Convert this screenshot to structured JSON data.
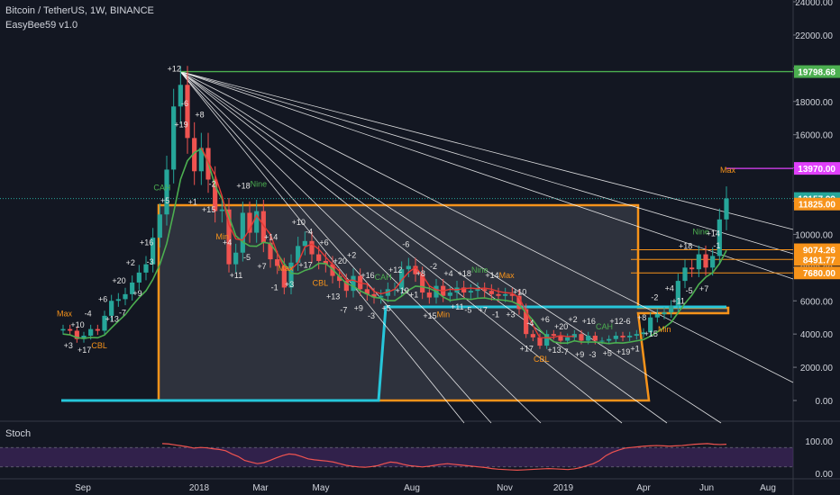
{
  "header": {
    "symbol_line": "Bitcoin / TetherUS, 1W, BINANCE",
    "indicator": "EasyBee59 v1.0"
  },
  "colors": {
    "background": "#131722",
    "up": "#26a69a",
    "down": "#ef5350",
    "orange": "#f7931a",
    "teal": "#26c6da",
    "green_line": "#4caf50",
    "red_line": "#e53935",
    "stoch_band": "#4a2a6e",
    "stoch_line": "#ef5350",
    "magenta": "#e040fb",
    "grid": "#2a2e39"
  },
  "chart_data": [
    {
      "type": "candlestick",
      "title": "Bitcoin / TetherUS, 1W, BINANCE",
      "ylim": [
        0,
        24000
      ],
      "y_ticks": [
        "0.00",
        "2000.00",
        "4000.00",
        "6000.00",
        "8000.00",
        "10000.00",
        "12000.00",
        "14000.00",
        "16000.00",
        "18000.00",
        "20000.00",
        "22000.00",
        "24000.00"
      ],
      "x_ticks": [
        "Sep",
        "2018",
        "Mar",
        "May",
        "Aug",
        "Nov",
        "2019",
        "Apr",
        "Jun",
        "Aug"
      ],
      "price_labels": [
        {
          "text": "19798.68",
          "value": 19798.68,
          "color": "#4caf50"
        },
        {
          "text": "13970.00",
          "value": 13970,
          "color": "#e040fb"
        },
        {
          "text": "12157.99",
          "value": 12157.99,
          "color": "#26a69a"
        },
        {
          "text": "11825.00",
          "value": 11825,
          "color": "#f7931a"
        },
        {
          "text": "9074.26",
          "value": 9074.26,
          "color": "#f7931a"
        },
        {
          "text": "8491.77",
          "value": 8491.77,
          "color": "#f7931a"
        },
        {
          "text": "7680.00",
          "value": 7680,
          "color": "#f7931a"
        }
      ],
      "closes": [
        4300,
        4200,
        3700,
        3900,
        4300,
        4200,
        5100,
        6000,
        6100,
        6400,
        7100,
        7700,
        8200,
        9800,
        11200,
        13900,
        17700,
        19000,
        15800,
        13800,
        15200,
        13300,
        11400,
        11500,
        8200,
        8900,
        11300,
        10100,
        11400,
        9500,
        8500,
        8100,
        6800,
        8300,
        9300,
        9600,
        8800,
        8400,
        8200,
        7500,
        7200,
        6600,
        7500,
        6700,
        6400,
        6200,
        6300,
        6700,
        6700,
        7900,
        8100,
        7600,
        6500,
        6200,
        6900,
        6300,
        6500,
        6800,
        6500,
        6600,
        6700,
        6600,
        6400,
        6300,
        6400,
        6300,
        5500,
        4000,
        3800,
        3300,
        4000,
        3900,
        3600,
        3800,
        4000,
        3600,
        3900,
        3600,
        3600,
        3700,
        3900,
        3800,
        3900,
        4000,
        4100,
        5000,
        5200,
        5300,
        5700,
        7200,
        8000,
        7900,
        8800,
        8000,
        8700,
        10900,
        12158
      ],
      "indicator_labels": [
        "Max",
        "Min",
        "CAH",
        "CBL",
        "Nine",
        "+1",
        "+2",
        "+3",
        "+4",
        "+5",
        "+6",
        "+7",
        "+8",
        "+9",
        "+10",
        "+11",
        "+12",
        "+13",
        "+14",
        "+15",
        "+16",
        "+17",
        "+18",
        "+19",
        "+20",
        "-1",
        "-2",
        "-3",
        "-4",
        "-5",
        "-6",
        "-7"
      ],
      "lines": [
        {
          "name": "",
          "type": "horizontal",
          "value": 19798.68,
          "color": "#4caf50"
        },
        {
          "name": "",
          "type": "horizontal",
          "value": 12157.99,
          "color": "#26a69a"
        }
      ]
    },
    {
      "type": "line",
      "title": "Stoch",
      "ylim": [
        0,
        100
      ],
      "y_ticks": [
        "100.00",
        "0.00"
      ],
      "band": [
        20,
        80
      ],
      "values": [
        92,
        91,
        88,
        85,
        82,
        78,
        80,
        79,
        76,
        74,
        70,
        60,
        52,
        40,
        35,
        30,
        33,
        40,
        48,
        55,
        60,
        58,
        52,
        45,
        42,
        40,
        38,
        35,
        30,
        25,
        22,
        20,
        19,
        21,
        24,
        30,
        35,
        33,
        28,
        24,
        22,
        20,
        22,
        25,
        28,
        30,
        28,
        26,
        24,
        22,
        20,
        18,
        15,
        13,
        12,
        11,
        10,
        11,
        12,
        13,
        14,
        15,
        14,
        13,
        12,
        14,
        18,
        24,
        30,
        40,
        55,
        65,
        72,
        78,
        80,
        82,
        84,
        85,
        86,
        85,
        84,
        85,
        86,
        88,
        90,
        91,
        92,
        90,
        89,
        90
      ]
    }
  ]
}
